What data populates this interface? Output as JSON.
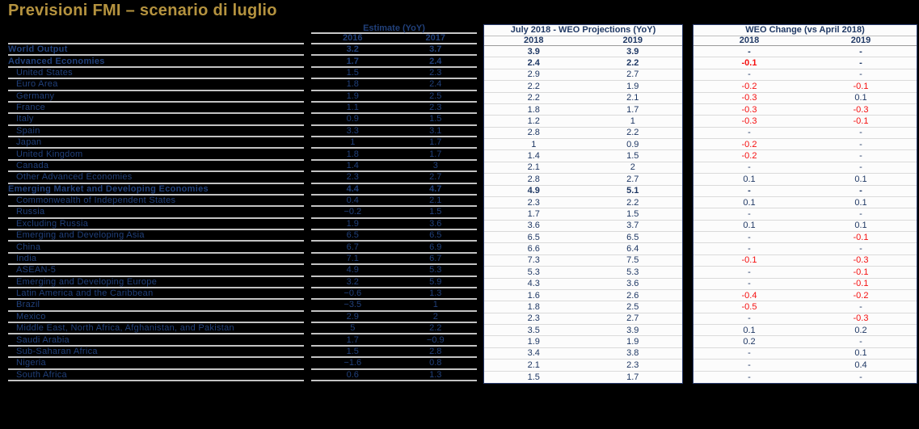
{
  "title": "Previsioni FMI – scenario di luglio",
  "colors": {
    "background": "#000000",
    "title_gold": "#B5933F",
    "navy_text": "#1F3864",
    "navy_on_black": "#21407A",
    "negative_red": "#F50F0F",
    "panel_background": "#FCFCFC"
  },
  "table": {
    "estimate": {
      "header": "Estimate (YoY)",
      "years": [
        "2016",
        "2017"
      ]
    },
    "projections": {
      "header": "July 2018 - WEO Projections (YoY)",
      "years": [
        "2018",
        "2019"
      ]
    },
    "change": {
      "header": "WEO Change (vs April 2018)",
      "years": [
        "2018",
        "2019"
      ]
    },
    "rows": [
      {
        "label": "World Output",
        "bold": true,
        "indent": 0,
        "estimate": [
          "3.2",
          "3.7"
        ],
        "projections": [
          "3.9",
          "3.9"
        ],
        "change": [
          "-",
          "-"
        ]
      },
      {
        "label": "Advanced Economies",
        "bold": true,
        "indent": 0,
        "estimate": [
          "1.7",
          "2.4"
        ],
        "projections": [
          "2.4",
          "2.2"
        ],
        "change": [
          "-0.1",
          "-"
        ]
      },
      {
        "label": "United States",
        "bold": false,
        "indent": 1,
        "estimate": [
          "1.5",
          "2.3"
        ],
        "projections": [
          "2.9",
          "2.7"
        ],
        "change": [
          "-",
          "-"
        ]
      },
      {
        "label": "Euro Area",
        "bold": false,
        "indent": 1,
        "estimate": [
          "1.8",
          "2.4"
        ],
        "projections": [
          "2.2",
          "1.9"
        ],
        "change": [
          "-0.2",
          "-0.1"
        ]
      },
      {
        "label": "Germany",
        "bold": false,
        "indent": 1,
        "estimate": [
          "1.9",
          "2.5"
        ],
        "projections": [
          "2.2",
          "2.1"
        ],
        "change": [
          "-0.3",
          "0.1"
        ]
      },
      {
        "label": "France",
        "bold": false,
        "indent": 1,
        "estimate": [
          "1.1",
          "2.3"
        ],
        "projections": [
          "1.8",
          "1.7"
        ],
        "change": [
          "-0.3",
          "-0.3"
        ]
      },
      {
        "label": "Italy",
        "bold": false,
        "indent": 1,
        "estimate": [
          "0.9",
          "1.5"
        ],
        "projections": [
          "1.2",
          "1"
        ],
        "change": [
          "-0.3",
          "-0.1"
        ]
      },
      {
        "label": "Spain",
        "bold": false,
        "indent": 1,
        "estimate": [
          "3.3",
          "3.1"
        ],
        "projections": [
          "2.8",
          "2.2"
        ],
        "change": [
          "-",
          "-"
        ]
      },
      {
        "label": "Japan",
        "bold": false,
        "indent": 1,
        "estimate": [
          "1",
          "1.7"
        ],
        "projections": [
          "1",
          "0.9"
        ],
        "change": [
          "-0.2",
          "-"
        ]
      },
      {
        "label": "United Kingdom",
        "bold": false,
        "indent": 1,
        "estimate": [
          "1.8",
          "1.7"
        ],
        "projections": [
          "1.4",
          "1.5"
        ],
        "change": [
          "-0.2",
          "-"
        ]
      },
      {
        "label": "Canada",
        "bold": false,
        "indent": 1,
        "estimate": [
          "1.4",
          "3"
        ],
        "projections": [
          "2.1",
          "2"
        ],
        "change": [
          "-",
          "-"
        ]
      },
      {
        "label": "Other Advanced Economies",
        "bold": false,
        "indent": 1,
        "estimate": [
          "2.3",
          "2.7"
        ],
        "projections": [
          "2.8",
          "2.7"
        ],
        "change": [
          "0.1",
          "0.1"
        ]
      },
      {
        "label": "Emerging Market and Developing Economies",
        "bold": true,
        "indent": 0,
        "estimate": [
          "4.4",
          "4.7"
        ],
        "projections": [
          "4.9",
          "5.1"
        ],
        "change": [
          "-",
          "-"
        ]
      },
      {
        "label": "Commonwealth of Independent States",
        "bold": false,
        "indent": 1,
        "estimate": [
          "0.4",
          "2.1"
        ],
        "projections": [
          "2.3",
          "2.2"
        ],
        "change": [
          "0.1",
          "0.1"
        ]
      },
      {
        "label": "Russia",
        "bold": false,
        "indent": 1,
        "estimate": [
          "−0.2",
          "1.5"
        ],
        "projections": [
          "1.7",
          "1.5"
        ],
        "change": [
          "-",
          "-"
        ]
      },
      {
        "label": "Excluding Russia",
        "bold": false,
        "indent": 1,
        "estimate": [
          "1.9",
          "3.6"
        ],
        "projections": [
          "3.6",
          "3.7"
        ],
        "change": [
          "0.1",
          "0.1"
        ]
      },
      {
        "label": "Emerging and Developing Asia",
        "bold": false,
        "indent": 1,
        "estimate": [
          "6.5",
          "6.5"
        ],
        "projections": [
          "6.5",
          "6.5"
        ],
        "change": [
          "-",
          "-0.1"
        ]
      },
      {
        "label": "China",
        "bold": false,
        "indent": 1,
        "estimate": [
          "6.7",
          "6.9"
        ],
        "projections": [
          "6.6",
          "6.4"
        ],
        "change": [
          "-",
          "-"
        ]
      },
      {
        "label": "India",
        "bold": false,
        "indent": 1,
        "estimate": [
          "7.1",
          "6.7"
        ],
        "projections": [
          "7.3",
          "7.5"
        ],
        "change": [
          "-0.1",
          "-0.3"
        ]
      },
      {
        "label": "ASEAN-5",
        "bold": false,
        "indent": 1,
        "estimate": [
          "4.9",
          "5.3"
        ],
        "projections": [
          "5.3",
          "5.3"
        ],
        "change": [
          "-",
          "-0.1"
        ]
      },
      {
        "label": "Emerging and Developing Europe",
        "bold": false,
        "indent": 1,
        "estimate": [
          "3.2",
          "5.9"
        ],
        "projections": [
          "4.3",
          "3.6"
        ],
        "change": [
          "-",
          "-0.1"
        ]
      },
      {
        "label": "Latin America and the Caribbean",
        "bold": false,
        "indent": 1,
        "estimate": [
          "−0.6",
          "1.3"
        ],
        "projections": [
          "1.6",
          "2.6"
        ],
        "change": [
          "-0.4",
          "-0.2"
        ]
      },
      {
        "label": "Brazil",
        "bold": false,
        "indent": 1,
        "estimate": [
          "−3.5",
          "1"
        ],
        "projections": [
          "1.8",
          "2.5"
        ],
        "change": [
          "-0.5",
          "-"
        ]
      },
      {
        "label": "Mexico",
        "bold": false,
        "indent": 1,
        "estimate": [
          "2.9",
          "2"
        ],
        "projections": [
          "2.3",
          "2.7"
        ],
        "change": [
          "-",
          "-0.3"
        ]
      },
      {
        "label": "Middle East, North Africa, Afghanistan, and Pakistan",
        "bold": false,
        "indent": 1,
        "estimate": [
          "5",
          "2.2"
        ],
        "projections": [
          "3.5",
          "3.9"
        ],
        "change": [
          "0.1",
          "0.2"
        ]
      },
      {
        "label": "Saudi Arabia",
        "bold": false,
        "indent": 1,
        "estimate": [
          "1.7",
          "−0.9"
        ],
        "projections": [
          "1.9",
          "1.9"
        ],
        "change": [
          "0.2",
          "-"
        ]
      },
      {
        "label": "Sub-Saharan Africa",
        "bold": false,
        "indent": 1,
        "estimate": [
          "1.5",
          "2.8"
        ],
        "projections": [
          "3.4",
          "3.8"
        ],
        "change": [
          "-",
          "0.1"
        ]
      },
      {
        "label": "Nigeria",
        "bold": false,
        "indent": 1,
        "estimate": [
          "−1.6",
          "0.8"
        ],
        "projections": [
          "2.1",
          "2.3"
        ],
        "change": [
          "-",
          "0.4"
        ]
      },
      {
        "label": "South Africa",
        "bold": false,
        "indent": 1,
        "estimate": [
          "0.6",
          "1.3"
        ],
        "projections": [
          "1.5",
          "1.7"
        ],
        "change": [
          "-",
          "-"
        ]
      }
    ]
  }
}
